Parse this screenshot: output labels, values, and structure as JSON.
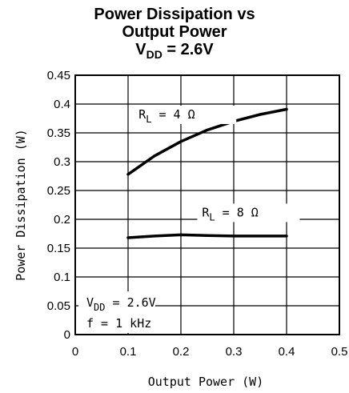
{
  "title": {
    "line1": "Power Dissipation vs",
    "line2": "Output Power",
    "line3_main": "V",
    "line3_sub": "DD",
    "line3_rest": " = 2.6V"
  },
  "chart_data": {
    "type": "line",
    "title": "Power Dissipation vs Output Power V_DD = 2.6V",
    "xlabel": "Output Power (W)",
    "ylabel": "Power Dissipation (W)",
    "xlim": [
      0,
      0.5
    ],
    "ylim": [
      0,
      0.45
    ],
    "x_ticks": [
      "0",
      "0.1",
      "0.2",
      "0.3",
      "0.4",
      "0.5"
    ],
    "y_ticks": [
      "0",
      "0.05",
      "0.1",
      "0.15",
      "0.2",
      "0.25",
      "0.3",
      "0.35",
      "0.4",
      "0.45"
    ],
    "grid": true,
    "series": [
      {
        "name": "RL = 4Ω",
        "label_main": "R",
        "label_sub": "L",
        "label_rest": " = 4 Ω",
        "x": [
          0.1,
          0.15,
          0.2,
          0.25,
          0.3,
          0.35,
          0.4
        ],
        "y": [
          0.278,
          0.31,
          0.335,
          0.355,
          0.37,
          0.382,
          0.391
        ]
      },
      {
        "name": "RL = 8Ω",
        "label_main": "R",
        "label_sub": "L",
        "label_rest": " = 8 Ω",
        "x": [
          0.1,
          0.15,
          0.2,
          0.25,
          0.3,
          0.35,
          0.4
        ],
        "y": [
          0.168,
          0.171,
          0.173,
          0.172,
          0.171,
          0.171,
          0.171
        ]
      }
    ],
    "annotation": {
      "vdd_main": "V",
      "vdd_sub": "DD",
      "vdd_rest": " = 2.6V",
      "freq": "f = 1 kHz"
    }
  }
}
